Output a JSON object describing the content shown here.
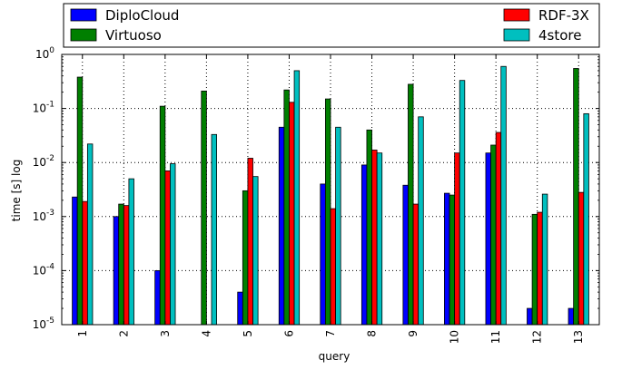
{
  "chart_data": {
    "type": "bar",
    "title": "",
    "xlabel": "query",
    "ylabel": "time [s] log",
    "yscale": "log",
    "ylim": [
      1e-05,
      1
    ],
    "grid": true,
    "legend_position": "top",
    "categories": [
      "1",
      "2",
      "3",
      "4",
      "5",
      "6",
      "7",
      "8",
      "9",
      "10",
      "11",
      "12",
      "13"
    ],
    "y_ticks": [
      {
        "value": 1e-05,
        "base": "10",
        "exp": "-5"
      },
      {
        "value": 0.0001,
        "base": "10",
        "exp": "-4"
      },
      {
        "value": 0.001,
        "base": "10",
        "exp": "-3"
      },
      {
        "value": 0.01,
        "base": "10",
        "exp": "-2"
      },
      {
        "value": 0.1,
        "base": "10",
        "exp": "-1"
      },
      {
        "value": 1,
        "base": "10",
        "exp": "0"
      }
    ],
    "series": [
      {
        "name": "DiploCloud",
        "color": "#0000ff",
        "values": [
          0.0023,
          0.001,
          0.0001,
          null,
          4e-05,
          0.045,
          0.004,
          0.009,
          0.0038,
          0.0027,
          0.015,
          2e-05,
          2e-05
        ]
      },
      {
        "name": "Virtuoso",
        "color": "#007f00",
        "values": [
          0.38,
          0.0017,
          0.11,
          0.21,
          0.003,
          0.22,
          0.15,
          0.04,
          0.28,
          0.0025,
          0.021,
          0.0011,
          0.55
        ]
      },
      {
        "name": "RDF-3X",
        "color": "#ff0000",
        "values": [
          0.0019,
          0.0016,
          0.007,
          null,
          0.012,
          0.13,
          0.0014,
          0.017,
          0.0017,
          0.015,
          0.036,
          0.0012,
          0.0028
        ]
      },
      {
        "name": "4store",
        "color": "#00bfbf",
        "values": [
          0.022,
          0.005,
          0.0095,
          0.033,
          0.0055,
          0.5,
          0.045,
          0.015,
          0.07,
          0.33,
          0.6,
          0.0026,
          0.08
        ]
      }
    ]
  }
}
